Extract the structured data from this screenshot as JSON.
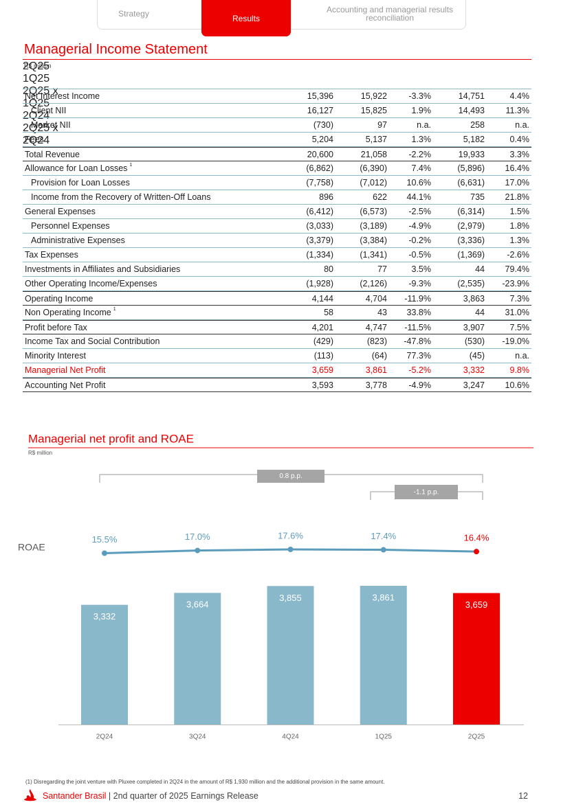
{
  "tabs": [
    "Strategy",
    "Results",
    "Accounting and managerial results reconciliation"
  ],
  "table": {
    "title": "Managerial Income Statement",
    "unit": "R$ million",
    "columns": [
      "2Q25",
      "1Q25",
      "2Q25 x 1Q25",
      "2Q24",
      "2Q25 x 2Q24"
    ],
    "rows": [
      {
        "label": "Net Interest Income",
        "cells": [
          "15,396",
          "15,922",
          "-3.3%",
          "14,751",
          "4.4%"
        ]
      },
      {
        "label": "Client NII",
        "cells": [
          "16,127",
          "15,825",
          "1.9%",
          "14,493",
          "11.3%"
        ]
      },
      {
        "label": "Market NII",
        "cells": [
          "(730)",
          "97",
          "n.a.",
          "258",
          "n.a."
        ]
      },
      {
        "label": "Fees",
        "cells": [
          "5,204",
          "5,137",
          "1.3%",
          "5,182",
          "0.4%"
        ]
      },
      {
        "label": "Total Revenue",
        "cells": [
          "20,600",
          "21,058",
          "-2.2%",
          "19,933",
          "3.3%"
        ]
      },
      {
        "label": "Allowance for Loan Losses",
        "note": "1",
        "cells": [
          "(6,862)",
          "(6,390)",
          "7.4%",
          "(5,896)",
          "16.4%"
        ]
      },
      {
        "label": "Provision for Loan Losses",
        "cells": [
          "(7,758)",
          "(7,012)",
          "10.6%",
          "(6,631)",
          "17.0%"
        ]
      },
      {
        "label": "Income from the Recovery of Written-Off Loans",
        "cells": [
          "896",
          "622",
          "44.1%",
          "735",
          "21.8%"
        ]
      },
      {
        "label": "General Expenses",
        "cells": [
          "(6,412)",
          "(6,573)",
          "-2.5%",
          "(6,314)",
          "1.5%"
        ]
      },
      {
        "label": "Personnel Expenses",
        "cells": [
          "(3,033)",
          "(3,189)",
          "-4.9%",
          "(2,979)",
          "1.8%"
        ]
      },
      {
        "label": "Administrative Expenses",
        "cells": [
          "(3,379)",
          "(3,384)",
          "-0.2%",
          "(3,336)",
          "1.3%"
        ]
      },
      {
        "label": "Tax Expenses",
        "cells": [
          "(1,334)",
          "(1,341)",
          "-0.5%",
          "(1,369)",
          "-2.6%"
        ]
      },
      {
        "label": "Investments in Affiliates and Subsidiaries",
        "cells": [
          "80",
          "77",
          "3.5%",
          "44",
          "79.4%"
        ]
      },
      {
        "label": "Other Operating Income/Expenses",
        "cells": [
          "(1,928)",
          "(2,126)",
          "-9.3%",
          "(2,535)",
          "-23.9%"
        ]
      },
      {
        "label": "Operating Income",
        "cells": [
          "4,144",
          "4,704",
          "-11.9%",
          "3,863",
          "7.3%"
        ]
      },
      {
        "label": "Non Operating Income",
        "note": "1",
        "cells": [
          "58",
          "43",
          "33.8%",
          "44",
          "31.0%"
        ]
      },
      {
        "label": "Profit before Tax",
        "cells": [
          "4,201",
          "4,747",
          "-11.5%",
          "3,907",
          "7.5%"
        ]
      },
      {
        "label": "Income Tax and Social Contribution",
        "cells": [
          "(429)",
          "(823)",
          "-47.8%",
          "(530)",
          "-19.0%"
        ]
      },
      {
        "label": "Minority Interest",
        "cells": [
          "(113)",
          "(64)",
          "77.3%",
          "(45)",
          "n.a."
        ]
      },
      {
        "label": "Managerial Net Profit",
        "cells": [
          "3,659",
          "3,861",
          "-5.2%",
          "3,332",
          "9.8%"
        ]
      },
      {
        "label": "Accounting Net Profit",
        "cells": [
          "3,593",
          "3,778",
          "-4.9%",
          "3,247",
          "10.6%"
        ]
      }
    ]
  },
  "chart_data": {
    "type": "bar",
    "title": "Managerial net profit and ROAE",
    "subtitle": "R$ million",
    "categories": [
      "2Q24",
      "3Q24",
      "4Q24",
      "1Q25",
      "2Q25"
    ],
    "series": [
      {
        "name": "Managerial net profit",
        "type": "bar",
        "values": [
          3332,
          3664,
          3855,
          3861,
          3659
        ],
        "value_labels": [
          "3,332",
          "3,664",
          "3,855",
          "3,861",
          "3,659"
        ],
        "colors": [
          "#8ab8cb",
          "#8ab8cb",
          "#8ab8cb",
          "#8ab8cb",
          "#ec0000"
        ]
      },
      {
        "name": "ROAE",
        "type": "line",
        "color": "#5b9cbd",
        "values": [
          15.5,
          17.0,
          17.6,
          17.4,
          16.4
        ],
        "value_labels": [
          "15.5%",
          "17.0%",
          "17.6%",
          "17.4%",
          "16.4%"
        ],
        "colors": [
          "#5b9cbd",
          "#5b9cbd",
          "#5b9cbd",
          "#5b9cbd",
          "#ec0000"
        ]
      }
    ],
    "annotations": [
      "0.8 p.p.",
      "-1.1 p.p."
    ]
  },
  "footnote": "(1) Disregarding the joint venture with Pluxee completed in 2Q24 in the amount of R$ 1,930 million and the additional provision in the same amount.",
  "footer": {
    "brand": "Santander Brasil",
    "text": "| 2nd quarter of 2025 Earnings Release",
    "page": "12"
  }
}
